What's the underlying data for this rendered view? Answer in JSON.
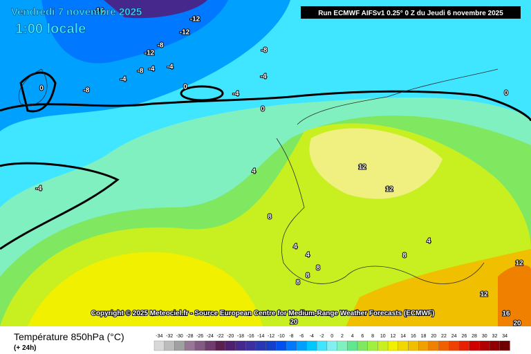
{
  "header": {
    "date": "Vendredi 7 novembre 2025",
    "time": "1:00 locale",
    "run": "Run ECMWF AIFSv1 0.25° 0 Z du Jeudi 6 novembre 2025"
  },
  "copyright": "Copyright © 2025 Meteociel.fr - Source European Centre for Medium-Range Weather Forecasts (ECMWF)",
  "contour_labels": [
    "-16",
    "-12",
    "-12",
    "-8",
    "-12",
    "-8",
    "-4",
    "-4",
    "-8",
    "-4",
    "-4",
    "0",
    "-8",
    "0",
    "-4",
    "0",
    "0",
    "4",
    "-4",
    "8",
    "12",
    "12",
    "4",
    "4",
    "8",
    "8",
    "8",
    "8",
    "4",
    "12",
    "12",
    "16",
    "20",
    "20"
  ],
  "footer": {
    "title": "Température 850hPa (°C)",
    "subtitle": "(+ 24h)"
  },
  "legend": {
    "values": [
      -34,
      -32,
      -30,
      -28,
      -26,
      -24,
      -22,
      -20,
      -18,
      -16,
      -14,
      -12,
      -10,
      -8,
      -6,
      -4,
      -2,
      0,
      2,
      4,
      6,
      8,
      10,
      12,
      14,
      16,
      18,
      20,
      22,
      24,
      26,
      28,
      30,
      32,
      34
    ],
    "colors": [
      "#d8d8d8",
      "#bcbcbc",
      "#a0a0a0",
      "#967896",
      "#825a82",
      "#6e3c6e",
      "#5a2050",
      "#502070",
      "#46288c",
      "#3c30a0",
      "#2838b4",
      "#1440c8",
      "#0050f0",
      "#0078ff",
      "#00a0ff",
      "#00c8ff",
      "#40e6ff",
      "#80f0f0",
      "#80f0c0",
      "#60e890",
      "#80e860",
      "#a0f040",
      "#c8f020",
      "#f0f000",
      "#f0d800",
      "#f0c000",
      "#f0a000",
      "#f08000",
      "#f06000",
      "#f04000",
      "#e82000",
      "#d00000",
      "#b00000",
      "#900000",
      "#700000"
    ]
  }
}
